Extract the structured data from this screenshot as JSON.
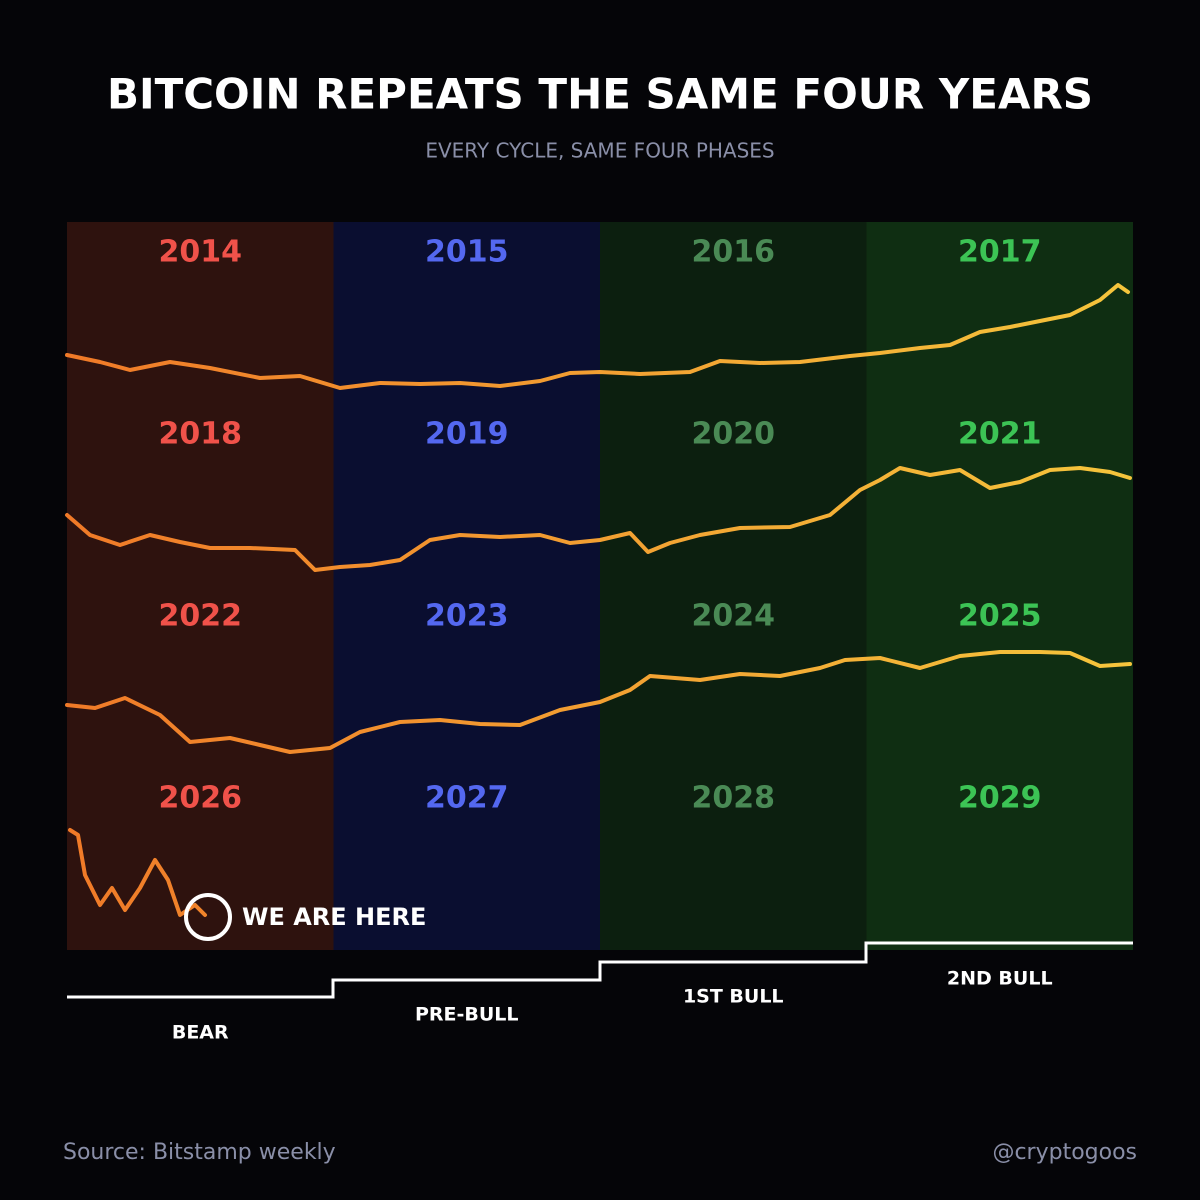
{
  "title": "BITCOIN REPEATS THE SAME FOUR YEARS",
  "subtitle": "EVERY CYCLE, SAME FOUR PHASES",
  "rows": [
    [
      "2014",
      "2015",
      "2016",
      "2017"
    ],
    [
      "2018",
      "2019",
      "2020",
      "2021"
    ],
    [
      "2022",
      "2023",
      "2024",
      "2025"
    ],
    [
      "2026",
      "2027",
      "2028",
      "2029"
    ]
  ],
  "phases": [
    "BEAR",
    "PRE-BULL",
    "1ST BULL",
    "2ND BULL"
  ],
  "annotation": "WE ARE HERE",
  "source": "Source: Bitstamp weekly",
  "handle": "@cryptogoos"
}
